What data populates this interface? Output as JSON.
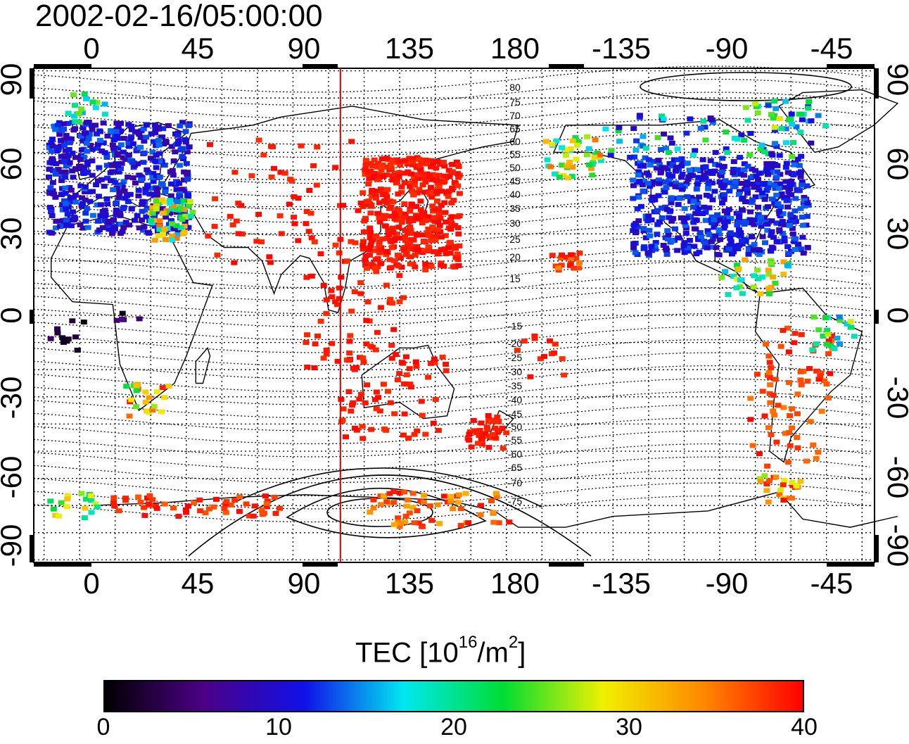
{
  "title": "2002-02-16/05:00:00",
  "map": {
    "top_lon_labels": [
      "0",
      "45",
      "90",
      "135",
      "180",
      "-135",
      "-90",
      "-45"
    ],
    "bottom_lon_labels": [
      "0",
      "45",
      "90",
      "135",
      "180",
      "-135",
      "-90",
      "-45"
    ],
    "left_lat_labels": [
      "90",
      "60",
      "30",
      "0",
      "-30",
      "-60",
      "-90"
    ],
    "right_lat_labels": [
      "90",
      "60",
      "30",
      "0",
      "-30",
      "-60",
      "-90"
    ],
    "contour_labels": [
      "80",
      "75",
      "70",
      "65",
      "60",
      "55",
      "50",
      "45",
      "40",
      "35",
      "30",
      "25",
      "20",
      "15",
      "-15",
      "-20",
      "-25",
      "-30",
      "-35",
      "-40",
      "-45",
      "-50",
      "-55",
      "-60",
      "-65",
      "-70",
      "-75"
    ],
    "terminator_lon": 105,
    "terminator_color": "#e00000"
  },
  "colorbar": {
    "title_main": "TEC  [10",
    "title_exp1": "16",
    "title_mid": "/m",
    "title_exp2": "2",
    "title_end": "]",
    "labels": [
      "0",
      "10",
      "20",
      "30",
      "40"
    ],
    "min": 0,
    "max": 40,
    "stops": [
      "#000000",
      "#4c0088",
      "#1010e8",
      "#00e8f0",
      "#00dd33",
      "#f0f000",
      "#ff8800",
      "#ff0000"
    ]
  },
  "colors": {
    "low_tec": "#2a3ad8",
    "mid_tec": "#22c8e0",
    "high_tec": "#ff1a1a"
  }
}
